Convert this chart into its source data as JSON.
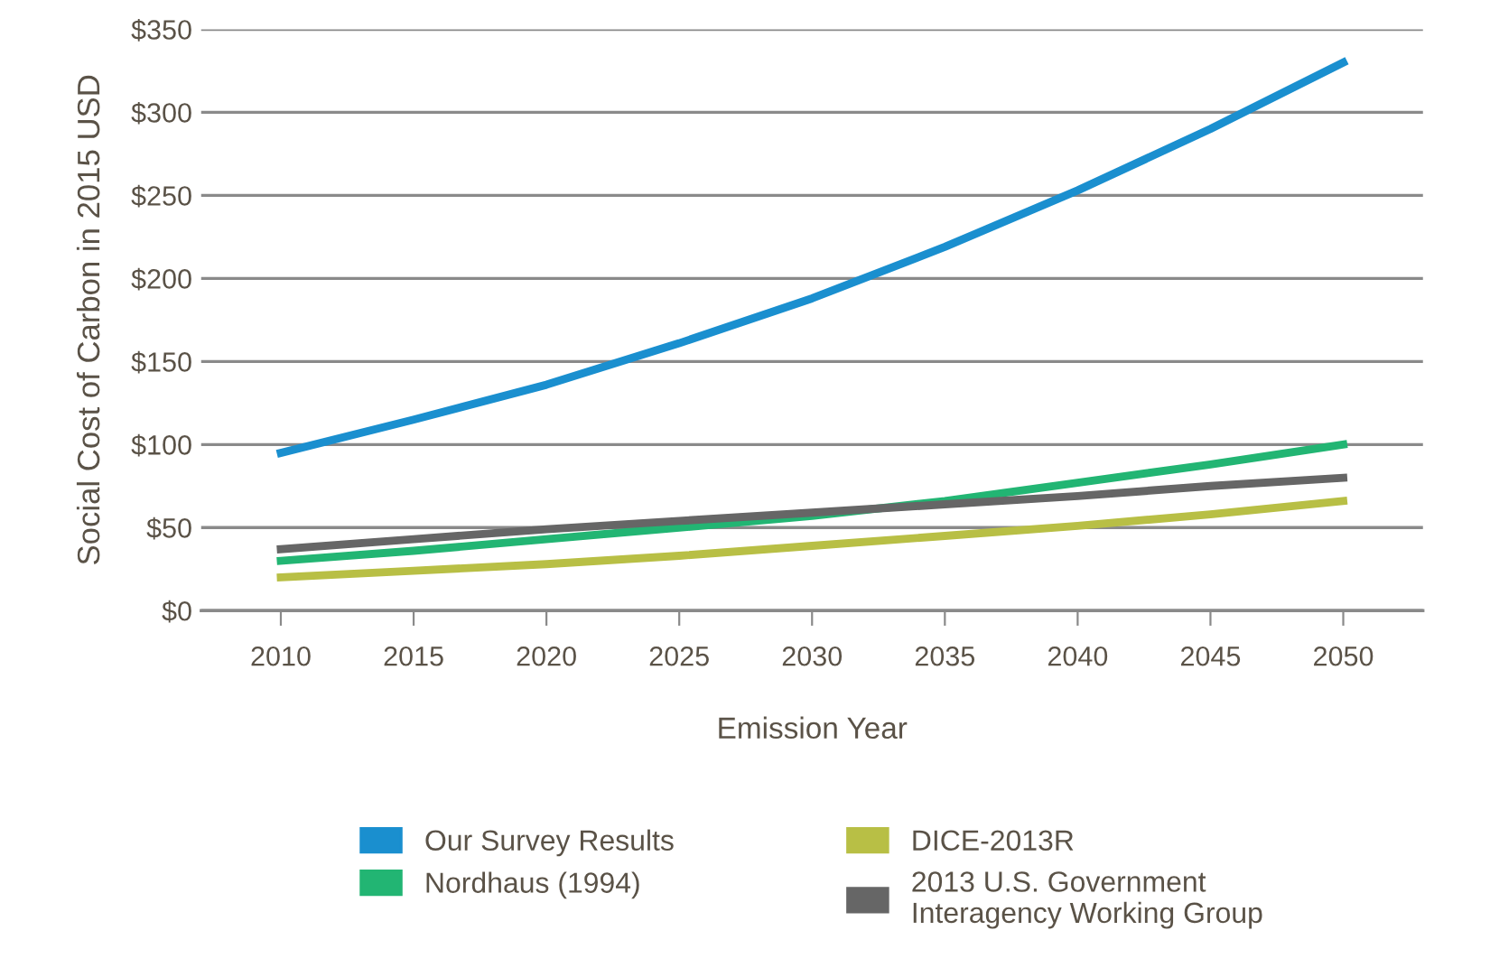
{
  "chart_data": {
    "type": "line",
    "xlabel": "Emission Year",
    "ylabel": "Social Cost of Carbon in 2015 USD",
    "x": [
      2010,
      2015,
      2020,
      2025,
      2030,
      2035,
      2040,
      2045,
      2050
    ],
    "series": [
      {
        "name": "Our Survey Results",
        "color": "#1a8fcf",
        "values": [
          95,
          115,
          136,
          161,
          188,
          219,
          253,
          290,
          330
        ]
      },
      {
        "name": "Nordhaus (1994)",
        "color": "#22b573",
        "values": [
          30,
          36,
          43,
          50,
          57,
          66,
          77,
          88,
          100
        ]
      },
      {
        "name": "DICE-2013R",
        "color": "#b8bf45",
        "values": [
          20,
          24,
          28,
          33,
          39,
          45,
          51,
          58,
          66
        ]
      },
      {
        "name": "2013 U.S. Government\nInteragency Working Group",
        "color": "#666666",
        "values": [
          37,
          43,
          49,
          54,
          59,
          64,
          69,
          75,
          80
        ]
      }
    ],
    "xlim": [
      2007,
      2053
    ],
    "xticks": [
      2010,
      2015,
      2020,
      2025,
      2030,
      2035,
      2040,
      2045,
      2050
    ],
    "ylim": [
      0,
      350
    ],
    "yticks": [
      {
        "value": 0,
        "label": "$0"
      },
      {
        "value": 50,
        "label": "$50"
      },
      {
        "value": 100,
        "label": "$100"
      },
      {
        "value": 150,
        "label": "$150"
      },
      {
        "value": 200,
        "label": "$200"
      },
      {
        "value": 250,
        "label": "$250"
      },
      {
        "value": 300,
        "label": "$300"
      },
      {
        "value": 350,
        "label": "$350"
      }
    ],
    "grid": "y",
    "legend": "bottom",
    "marker": "none",
    "line_style": "solid"
  }
}
